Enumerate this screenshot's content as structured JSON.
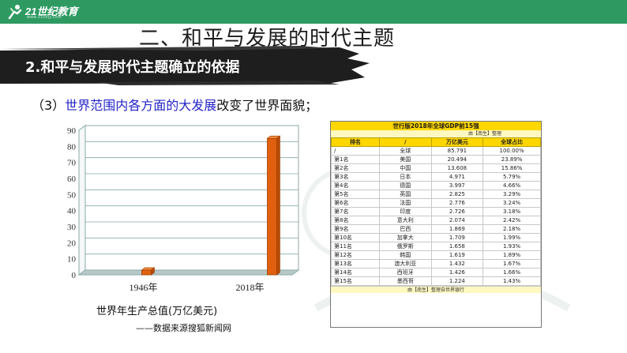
{
  "logo": {
    "brand": "21世纪教育",
    "domain": "www.21cnjy.com",
    "icon": "runner-logo-icon"
  },
  "header": {
    "bar_color": "#2e9a62"
  },
  "slide": {
    "main_title": "二、和平与发展的时代主题",
    "sub_title": "2.和平与发展时代主题确立的依据",
    "point_prefix": "（3）",
    "point_highlight": "世界范围内各方面的大发展",
    "point_rest": "改变了世界面貌；"
  },
  "chart_data": {
    "type": "bar",
    "categories": [
      "1946年",
      "2018年"
    ],
    "values": [
      3,
      85
    ],
    "ylim": [
      0,
      90
    ],
    "yticks": [
      0,
      10,
      20,
      30,
      40,
      50,
      60,
      70,
      80,
      90
    ],
    "bar_color": "#e06010",
    "caption": "世界年生产总值(万亿美元)",
    "source": "——数据来源搜狐新闻网"
  },
  "gdp_table": {
    "title": "世行版2018年全球GDP前15强",
    "subtitle": "由【南生】整理",
    "headers": [
      "排名",
      "/",
      "万亿美元",
      "全球占比"
    ],
    "rows": [
      [
        "/",
        "全球",
        "85.791",
        "100.00%"
      ],
      [
        "第1名",
        "美国",
        "20.494",
        "23.89%"
      ],
      [
        "第2名",
        "中国",
        "13.608",
        "15.86%"
      ],
      [
        "第3名",
        "日本",
        "4.971",
        "5.79%"
      ],
      [
        "第4名",
        "德国",
        "3.997",
        "4.66%"
      ],
      [
        "第5名",
        "英国",
        "2.825",
        "3.29%"
      ],
      [
        "第6名",
        "法国",
        "2.776",
        "3.24%"
      ],
      [
        "第7名",
        "印度",
        "2.726",
        "3.18%"
      ],
      [
        "第8名",
        "意大利",
        "2.074",
        "2.42%"
      ],
      [
        "第9名",
        "巴西",
        "1.869",
        "2.18%"
      ],
      [
        "第10名",
        "加拿大",
        "1.709",
        "1.99%"
      ],
      [
        "第11名",
        "俄罗斯",
        "1.658",
        "1.93%"
      ],
      [
        "第12名",
        "韩国",
        "1.619",
        "1.89%"
      ],
      [
        "第13名",
        "澳大利亚",
        "1.432",
        "1.67%"
      ],
      [
        "第14名",
        "西班牙",
        "1.426",
        "1.66%"
      ],
      [
        "第15名",
        "墨西哥",
        "1.224",
        "1.43%"
      ]
    ],
    "footer": "由【南生】整理自世界银行"
  }
}
